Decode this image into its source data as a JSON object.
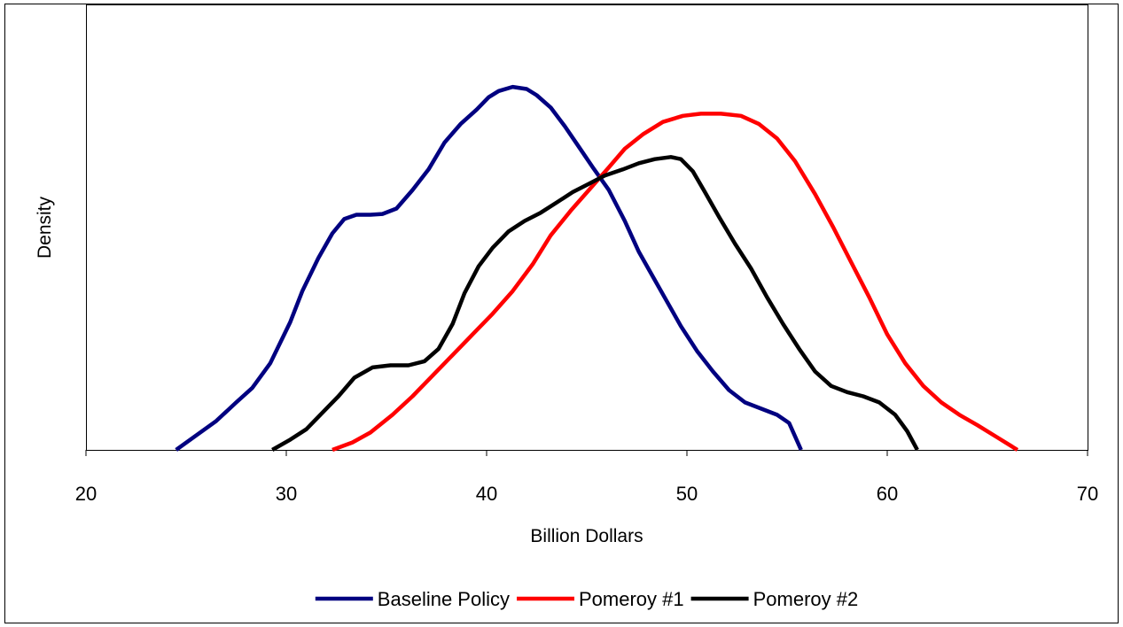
{
  "chart_data": {
    "type": "line",
    "title": "",
    "xlabel": "Billion Dollars",
    "ylabel": "Density",
    "xlim": [
      20,
      70
    ],
    "ylim": [
      0,
      1.08
    ],
    "x_ticks": [
      "20",
      "30",
      "40",
      "50",
      "60",
      "70"
    ],
    "y_ticks_visible": false,
    "grid": false,
    "legend_position": "bottom",
    "series": [
      {
        "name": "Baseline Policy",
        "color": "#000080",
        "points": [
          [
            24.5,
            0.0
          ],
          [
            25.5,
            0.035
          ],
          [
            26.5,
            0.07
          ],
          [
            27.5,
            0.115
          ],
          [
            28.3,
            0.15
          ],
          [
            29.2,
            0.21
          ],
          [
            30.2,
            0.31
          ],
          [
            30.8,
            0.385
          ],
          [
            31.6,
            0.465
          ],
          [
            32.3,
            0.525
          ],
          [
            32.9,
            0.56
          ],
          [
            33.5,
            0.57
          ],
          [
            34.2,
            0.57
          ],
          [
            34.8,
            0.572
          ],
          [
            35.5,
            0.585
          ],
          [
            36.3,
            0.63
          ],
          [
            37.1,
            0.68
          ],
          [
            37.9,
            0.745
          ],
          [
            38.7,
            0.79
          ],
          [
            39.5,
            0.825
          ],
          [
            40.1,
            0.855
          ],
          [
            40.6,
            0.87
          ],
          [
            41.3,
            0.88
          ],
          [
            42.0,
            0.875
          ],
          [
            42.5,
            0.86
          ],
          [
            43.2,
            0.83
          ],
          [
            43.9,
            0.785
          ],
          [
            44.6,
            0.735
          ],
          [
            45.3,
            0.685
          ],
          [
            46.1,
            0.63
          ],
          [
            46.9,
            0.555
          ],
          [
            47.6,
            0.48
          ],
          [
            48.3,
            0.42
          ],
          [
            49.0,
            0.36
          ],
          [
            49.7,
            0.3
          ],
          [
            50.5,
            0.24
          ],
          [
            51.3,
            0.19
          ],
          [
            52.1,
            0.145
          ],
          [
            52.9,
            0.115
          ],
          [
            53.7,
            0.1
          ],
          [
            54.5,
            0.085
          ],
          [
            55.1,
            0.065
          ],
          [
            55.7,
            0.0
          ]
        ]
      },
      {
        "name": "Pomeroy #1",
        "color": "#ff0000",
        "points": [
          [
            32.3,
            0.0
          ],
          [
            33.3,
            0.018
          ],
          [
            34.2,
            0.042
          ],
          [
            35.3,
            0.085
          ],
          [
            36.3,
            0.13
          ],
          [
            37.3,
            0.18
          ],
          [
            38.3,
            0.23
          ],
          [
            39.3,
            0.28
          ],
          [
            40.3,
            0.33
          ],
          [
            41.3,
            0.385
          ],
          [
            42.3,
            0.45
          ],
          [
            43.2,
            0.52
          ],
          [
            44.2,
            0.58
          ],
          [
            45.2,
            0.635
          ],
          [
            46.1,
            0.685
          ],
          [
            46.9,
            0.73
          ],
          [
            47.8,
            0.765
          ],
          [
            48.8,
            0.795
          ],
          [
            49.8,
            0.81
          ],
          [
            50.7,
            0.815
          ],
          [
            51.7,
            0.815
          ],
          [
            52.7,
            0.81
          ],
          [
            53.6,
            0.79
          ],
          [
            54.5,
            0.755
          ],
          [
            55.4,
            0.7
          ],
          [
            56.4,
            0.62
          ],
          [
            57.3,
            0.54
          ],
          [
            58.2,
            0.455
          ],
          [
            59.1,
            0.37
          ],
          [
            60.0,
            0.28
          ],
          [
            60.9,
            0.21
          ],
          [
            61.8,
            0.155
          ],
          [
            62.7,
            0.115
          ],
          [
            63.6,
            0.085
          ],
          [
            64.5,
            0.06
          ],
          [
            65.5,
            0.03
          ],
          [
            66.5,
            0.0
          ]
        ]
      },
      {
        "name": "Pomeroy #2",
        "color": "#000000",
        "points": [
          [
            29.3,
            0.0
          ],
          [
            30.2,
            0.025
          ],
          [
            31.0,
            0.05
          ],
          [
            31.8,
            0.09
          ],
          [
            32.6,
            0.13
          ],
          [
            33.4,
            0.175
          ],
          [
            34.3,
            0.2
          ],
          [
            35.2,
            0.205
          ],
          [
            36.1,
            0.205
          ],
          [
            36.9,
            0.215
          ],
          [
            37.6,
            0.245
          ],
          [
            38.3,
            0.305
          ],
          [
            38.9,
            0.38
          ],
          [
            39.6,
            0.445
          ],
          [
            40.3,
            0.49
          ],
          [
            41.1,
            0.53
          ],
          [
            41.9,
            0.555
          ],
          [
            42.7,
            0.575
          ],
          [
            43.5,
            0.6
          ],
          [
            44.3,
            0.625
          ],
          [
            45.1,
            0.645
          ],
          [
            45.9,
            0.665
          ],
          [
            46.8,
            0.68
          ],
          [
            47.6,
            0.695
          ],
          [
            48.4,
            0.705
          ],
          [
            49.2,
            0.71
          ],
          [
            49.7,
            0.705
          ],
          [
            50.3,
            0.675
          ],
          [
            50.9,
            0.625
          ],
          [
            51.6,
            0.565
          ],
          [
            52.4,
            0.5
          ],
          [
            53.2,
            0.44
          ],
          [
            54.0,
            0.37
          ],
          [
            54.8,
            0.305
          ],
          [
            55.6,
            0.245
          ],
          [
            56.4,
            0.19
          ],
          [
            57.2,
            0.155
          ],
          [
            58.0,
            0.14
          ],
          [
            58.8,
            0.13
          ],
          [
            59.6,
            0.115
          ],
          [
            60.4,
            0.085
          ],
          [
            61.0,
            0.045
          ],
          [
            61.5,
            0.0
          ]
        ]
      }
    ]
  }
}
